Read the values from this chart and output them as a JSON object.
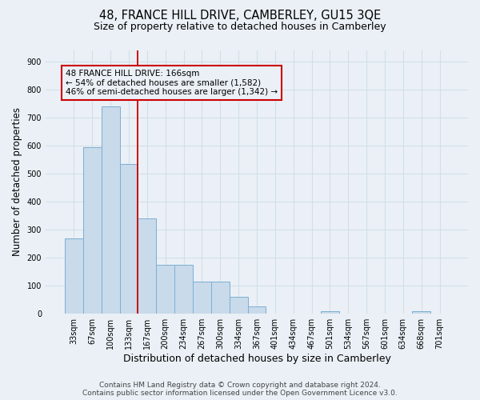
{
  "title_line1": "48, FRANCE HILL DRIVE, CAMBERLEY, GU15 3QE",
  "title_line2": "Size of property relative to detached houses in Camberley",
  "xlabel": "Distribution of detached houses by size in Camberley",
  "ylabel": "Number of detached properties",
  "bar_labels": [
    "33sqm",
    "67sqm",
    "100sqm",
    "133sqm",
    "167sqm",
    "200sqm",
    "234sqm",
    "267sqm",
    "300sqm",
    "334sqm",
    "367sqm",
    "401sqm",
    "434sqm",
    "467sqm",
    "501sqm",
    "534sqm",
    "567sqm",
    "601sqm",
    "634sqm",
    "668sqm",
    "701sqm"
  ],
  "bar_values": [
    270,
    595,
    740,
    535,
    340,
    175,
    175,
    115,
    115,
    60,
    25,
    0,
    0,
    0,
    10,
    0,
    0,
    0,
    0,
    10,
    0
  ],
  "bar_color": "#c9daea",
  "bar_edge_color": "#7bafd4",
  "grid_color": "#d4dfe8",
  "background_color": "#eaf0f6",
  "annotation_box_color": "#cc0000",
  "annotation_text_line1": "48 FRANCE HILL DRIVE: 166sqm",
  "annotation_text_line2": "← 54% of detached houses are smaller (1,582)",
  "annotation_text_line3": "46% of semi-detached houses are larger (1,342) →",
  "vline_color": "#cc0000",
  "ylim": [
    0,
    940
  ],
  "yticks": [
    0,
    100,
    200,
    300,
    400,
    500,
    600,
    700,
    800,
    900
  ],
  "footnote_line1": "Contains HM Land Registry data © Crown copyright and database right 2024.",
  "footnote_line2": "Contains public sector information licensed under the Open Government Licence v3.0.",
  "title_fontsize": 10.5,
  "subtitle_fontsize": 9,
  "ylabel_fontsize": 8.5,
  "xlabel_fontsize": 9,
  "tick_fontsize": 7,
  "annotation_fontsize": 7.5,
  "footnote_fontsize": 6.5
}
